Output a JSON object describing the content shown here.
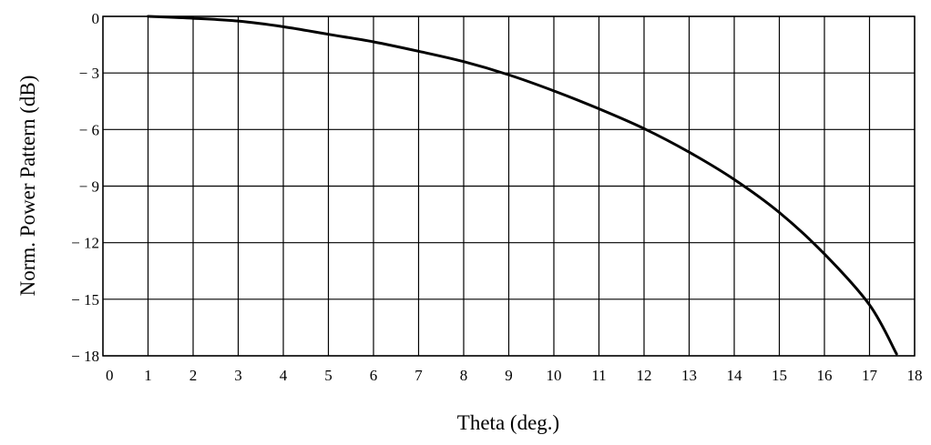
{
  "chart_data": {
    "type": "line",
    "title": "",
    "xlabel": "Theta (deg.)",
    "ylabel": "Norm. Power Pattern (dB)",
    "xlim": [
      0,
      18
    ],
    "ylim": [
      -18,
      0
    ],
    "x_ticks": [
      0,
      1,
      2,
      3,
      4,
      5,
      6,
      7,
      8,
      9,
      10,
      11,
      12,
      13,
      14,
      15,
      16,
      17,
      18
    ],
    "y_ticks": [
      0,
      -3,
      -6,
      -9,
      -12,
      -15,
      -18
    ],
    "x_tick_labels": [
      "0",
      "1",
      "2",
      "3",
      "4",
      "5",
      "6",
      "7",
      "8",
      "9",
      "10",
      "11",
      "12",
      "13",
      "14",
      "15",
      "16",
      "17",
      "18"
    ],
    "y_tick_labels": [
      "0",
      "− 3",
      "− 6",
      "− 9",
      "− 12",
      "− 15",
      "− 18"
    ],
    "grid": true,
    "legend": false,
    "series": [
      {
        "color": "#000000",
        "x": [
          1,
          2,
          3,
          4,
          5,
          6,
          7,
          8,
          9,
          10,
          11,
          12,
          13,
          14,
          15,
          16,
          17,
          17.6
        ],
        "y": [
          0,
          -0.1,
          -0.25,
          -0.55,
          -0.95,
          -1.35,
          -1.85,
          -2.4,
          -3.1,
          -3.95,
          -4.9,
          -5.95,
          -7.2,
          -8.65,
          -10.4,
          -12.6,
          -15.3,
          -17.9
        ]
      }
    ]
  }
}
